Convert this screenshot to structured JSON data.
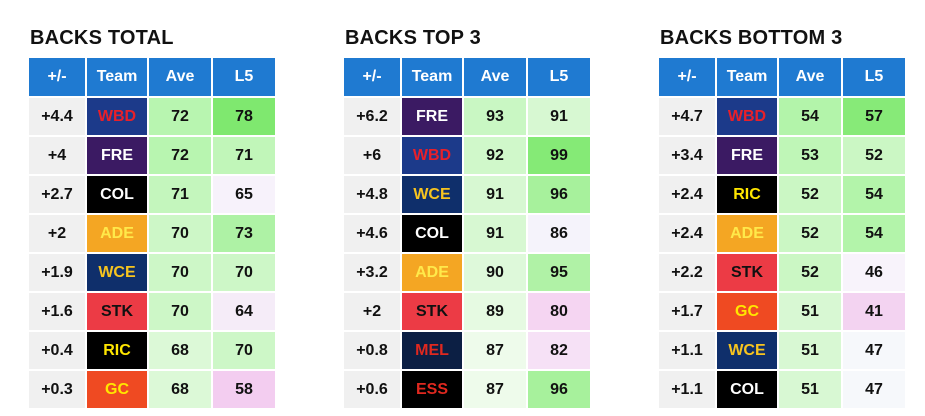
{
  "headers": [
    "+/-",
    "Team",
    "Ave",
    "L5"
  ],
  "teams": {
    "WBD": {
      "bg": "#1c3a8a",
      "fg": "#e8202a"
    },
    "FRE": {
      "bg": "#3b1a63",
      "fg": "#ffffff"
    },
    "COL": {
      "bg": "#000000",
      "fg": "#ffffff"
    },
    "ADE": {
      "bg": "#f4a623",
      "fg": "#ffe94a"
    },
    "WCE": {
      "bg": "#0f2f6b",
      "fg": "#f7c41f"
    },
    "STK": {
      "bg": "#ec3b45",
      "fg": "#111111"
    },
    "RIC": {
      "bg": "#000000",
      "fg": "#ffe600"
    },
    "GC": {
      "bg": "#ef4a22",
      "fg": "#ffe600"
    },
    "MEL": {
      "bg": "#0c1f44",
      "fg": "#e0281f"
    },
    "ESS": {
      "bg": "#000000",
      "fg": "#e0281f"
    }
  },
  "panels": [
    {
      "title": "BACKS TOTAL",
      "rows": [
        {
          "pm": "+4.4",
          "team": "WBD",
          "ave": "72",
          "ave_bg": "#b8f5b0",
          "l5": "78",
          "l5_bg": "#7fe86f"
        },
        {
          "pm": "+4",
          "team": "FRE",
          "ave": "72",
          "ave_bg": "#b8f5b0",
          "l5": "71",
          "l5_bg": "#c1f6b9"
        },
        {
          "pm": "+2.7",
          "team": "COL",
          "ave": "71",
          "ave_bg": "#c4f6bd",
          "l5": "65",
          "l5_bg": "#f7f2fb"
        },
        {
          "pm": "+2",
          "team": "ADE",
          "ave": "70",
          "ave_bg": "#cdf7c7",
          "l5": "73",
          "l5_bg": "#aef2a5"
        },
        {
          "pm": "+1.9",
          "team": "WCE",
          "ave": "70",
          "ave_bg": "#cdf7c7",
          "l5": "70",
          "l5_bg": "#cdf7c7"
        },
        {
          "pm": "+1.6",
          "team": "STK",
          "ave": "70",
          "ave_bg": "#cdf7c7",
          "l5": "64",
          "l5_bg": "#f5ecf8"
        },
        {
          "pm": "+0.4",
          "team": "RIC",
          "ave": "68",
          "ave_bg": "#dcf9d7",
          "l5": "70",
          "l5_bg": "#cdf7c7"
        },
        {
          "pm": "+0.3",
          "team": "GC",
          "ave": "68",
          "ave_bg": "#dcf9d7",
          "l5": "58",
          "l5_bg": "#f3cdf0"
        }
      ]
    },
    {
      "title": "BACKS TOP 3",
      "rows": [
        {
          "pm": "+6.2",
          "team": "FRE",
          "ave": "93",
          "ave_bg": "#c9f7c3",
          "l5": "91",
          "l5_bg": "#d7f8d2"
        },
        {
          "pm": "+6",
          "team": "WBD",
          "ave": "92",
          "ave_bg": "#d0f8ca",
          "l5": "99",
          "l5_bg": "#85ea76"
        },
        {
          "pm": "+4.8",
          "team": "WCE",
          "ave": "91",
          "ave_bg": "#d7f8d2",
          "l5": "96",
          "l5_bg": "#a7f19c"
        },
        {
          "pm": "+4.6",
          "team": "COL",
          "ave": "91",
          "ave_bg": "#d7f8d2",
          "l5": "86",
          "l5_bg": "#f5f3fb"
        },
        {
          "pm": "+3.2",
          "team": "ADE",
          "ave": "90",
          "ave_bg": "#def9da",
          "l5": "95",
          "l5_bg": "#b0f2a6"
        },
        {
          "pm": "+2",
          "team": "STK",
          "ave": "89",
          "ave_bg": "#e6fae2",
          "l5": "80",
          "l5_bg": "#f5d5f2"
        },
        {
          "pm": "+0.8",
          "team": "MEL",
          "ave": "87",
          "ave_bg": "#eefbeb",
          "l5": "82",
          "l5_bg": "#f6e1f6"
        },
        {
          "pm": "+0.6",
          "team": "ESS",
          "ave": "87",
          "ave_bg": "#eefbeb",
          "l5": "96",
          "l5_bg": "#a7f19c"
        }
      ]
    },
    {
      "title": "BACKS BOTTOM 3",
      "rows": [
        {
          "pm": "+4.7",
          "team": "WBD",
          "ave": "54",
          "ave_bg": "#b3f4aa",
          "l5": "57",
          "l5_bg": "#87ea78"
        },
        {
          "pm": "+3.4",
          "team": "FRE",
          "ave": "53",
          "ave_bg": "#bff6b7",
          "l5": "52",
          "l5_bg": "#cbf7c4"
        },
        {
          "pm": "+2.4",
          "team": "RIC",
          "ave": "52",
          "ave_bg": "#cbf7c4",
          "l5": "54",
          "l5_bg": "#b3f4aa"
        },
        {
          "pm": "+2.4",
          "team": "ADE",
          "ave": "52",
          "ave_bg": "#cbf7c4",
          "l5": "54",
          "l5_bg": "#b3f4aa"
        },
        {
          "pm": "+2.2",
          "team": "STK",
          "ave": "52",
          "ave_bg": "#cbf7c4",
          "l5": "46",
          "l5_bg": "#f8f3fb"
        },
        {
          "pm": "+1.7",
          "team": "GC",
          "ave": "51",
          "ave_bg": "#d8f8d3",
          "l5": "41",
          "l5_bg": "#f3d3f1"
        },
        {
          "pm": "+1.1",
          "team": "WCE",
          "ave": "51",
          "ave_bg": "#d8f8d3",
          "l5": "47",
          "l5_bg": "#f6f8fb"
        },
        {
          "pm": "+1.1",
          "team": "COL",
          "ave": "51",
          "ave_bg": "#d8f8d3",
          "l5": "47",
          "l5_bg": "#f6f8fb"
        }
      ]
    }
  ]
}
